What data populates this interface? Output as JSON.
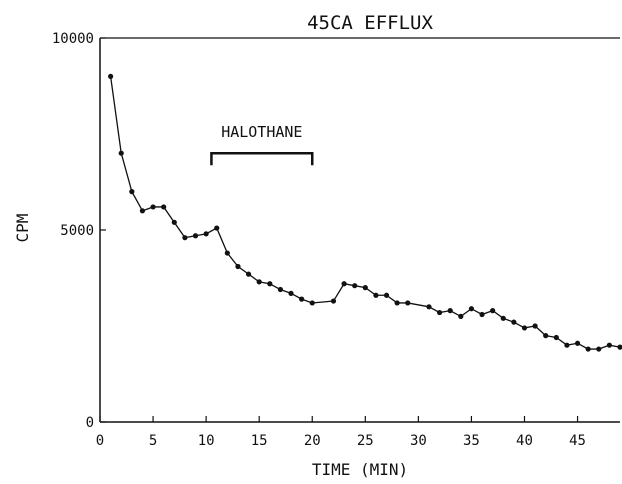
{
  "chart_data": {
    "type": "line",
    "title": "45CA EFFLUX",
    "xlabel": "TIME (MIN)",
    "ylabel": "CPM",
    "xlim": [
      0,
      49
    ],
    "ylim": [
      0,
      10000
    ],
    "xticks": [
      0,
      5,
      10,
      15,
      20,
      25,
      30,
      35,
      40,
      45
    ],
    "xtick_labels": [
      "0",
      "5",
      "10",
      "15",
      "20",
      "25",
      "30",
      "35",
      "40",
      "45"
    ],
    "yticks": [
      0,
      5000,
      10000
    ],
    "ytick_labels": [
      "0",
      "5000",
      "10000"
    ],
    "grid": false,
    "annotations": [
      {
        "text": "HALOTHANE",
        "x_start": 10.5,
        "x_end": 20,
        "y": 7000
      }
    ],
    "series": [
      {
        "x": [
          1,
          2,
          3,
          4,
          5,
          6,
          7,
          8,
          9,
          10,
          11,
          12,
          13,
          14,
          15,
          16,
          17,
          18,
          19,
          20,
          22,
          23,
          24,
          25,
          26,
          27,
          28,
          29,
          31,
          32,
          33,
          34,
          35,
          36,
          37,
          38,
          39,
          40,
          41,
          42,
          43,
          44,
          45,
          46,
          47,
          48,
          49
        ],
        "values": [
          9000,
          7000,
          6000,
          5500,
          5600,
          5600,
          5200,
          4800,
          4850,
          4900,
          5050,
          4400,
          4050,
          3850,
          3650,
          3600,
          3450,
          3350,
          3200,
          3100,
          3150,
          3600,
          3550,
          3500,
          3300,
          3300,
          3100,
          3100,
          3000,
          2850,
          2900,
          2750,
          2950,
          2800,
          2900,
          2700,
          2600,
          2450,
          2500,
          2250,
          2200,
          2000,
          2050,
          1900,
          1900,
          2000,
          1950
        ]
      }
    ]
  }
}
